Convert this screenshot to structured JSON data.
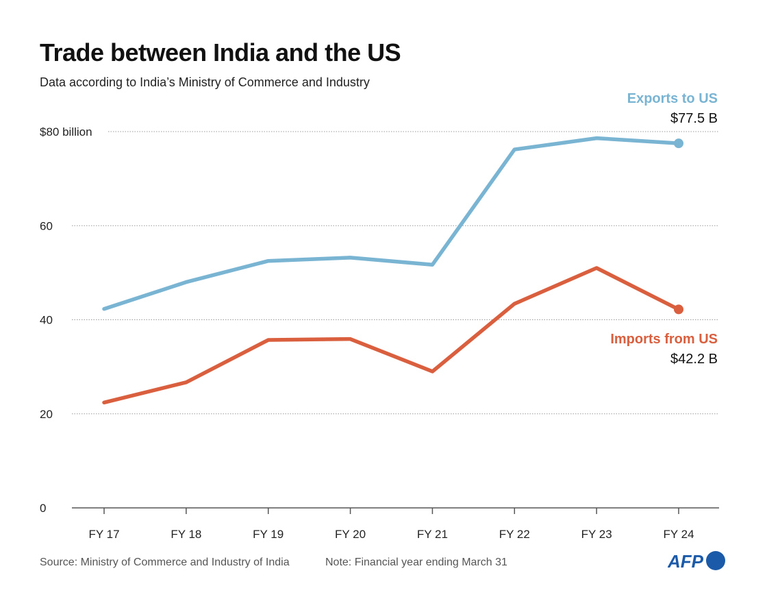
{
  "chart_data": {
    "type": "line",
    "title": "Trade between India and the US",
    "subtitle": "Data according to India’s Ministry of Commerce and Industry",
    "categories": [
      "FY 17",
      "FY 18",
      "FY 19",
      "FY 20",
      "FY 21",
      "FY 22",
      "FY 23",
      "FY 24"
    ],
    "ylim": [
      0,
      80
    ],
    "yticks": [
      0,
      20,
      40,
      60,
      80
    ],
    "ytick_labels": [
      "0",
      "20",
      "40",
      "60",
      "$80 billion"
    ],
    "grid": true,
    "series": [
      {
        "name": "Exports to US",
        "end_label": "$77.5 B",
        "color": "#79b4d3",
        "values": [
          42.3,
          48.0,
          52.5,
          53.2,
          51.7,
          76.2,
          78.6,
          77.5
        ]
      },
      {
        "name": "Imports from US",
        "end_label": "$42.2 B",
        "color": "#d95f3e",
        "values": [
          22.4,
          26.7,
          35.7,
          35.9,
          29.0,
          43.4,
          51.0,
          42.2
        ]
      }
    ]
  },
  "footer": {
    "source": "Source: Ministry of Commerce and Industry of India",
    "note": "Note: Financial year ending March 31",
    "logo": "AFP",
    "logo_color": "#1b5aa8"
  }
}
